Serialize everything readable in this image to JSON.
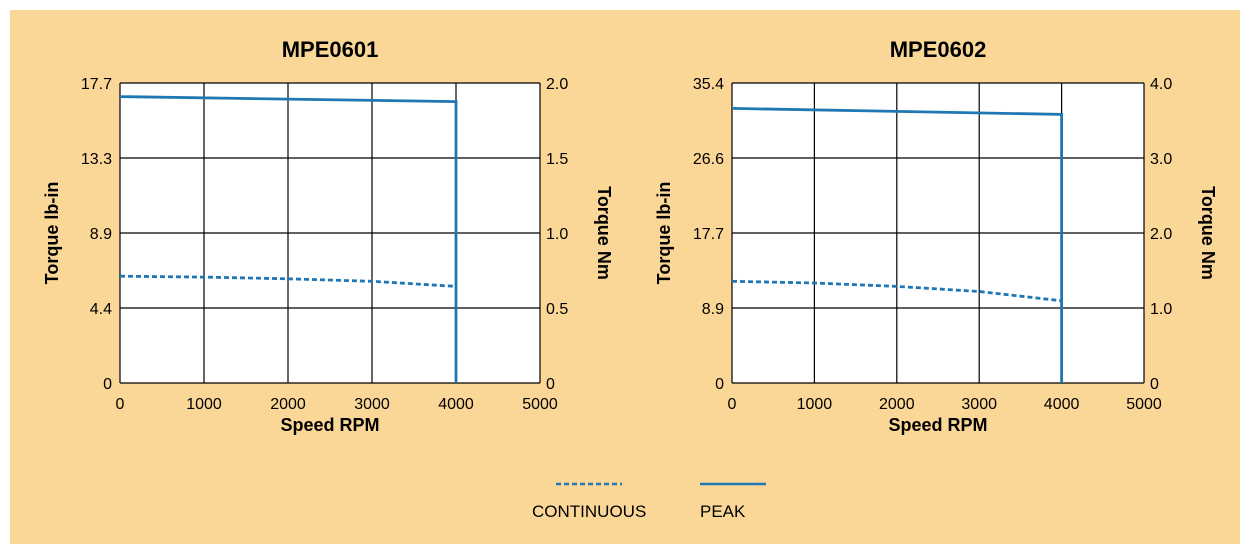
{
  "colors": {
    "background": "#fbd797",
    "plot_area": "#ffffff",
    "series": "#1f78b4",
    "grid": "#000000"
  },
  "legend": {
    "continuous_label": "CONTINUOUS",
    "peak_label": "PEAK"
  },
  "chart_data": [
    {
      "type": "line",
      "title": "MPE0601",
      "xlabel": "Speed RPM",
      "ylabel_left": "Torque lb-in",
      "ylabel_right": "Torque Nm",
      "xlim": [
        0,
        5000
      ],
      "x_ticks": [
        "0",
        "1000",
        "2000",
        "3000",
        "4000",
        "5000"
      ],
      "ylim_left": [
        0,
        17.7
      ],
      "y_ticks_left": [
        "0",
        "4.4",
        "8.9",
        "13.3",
        "17.7"
      ],
      "ylim_right": [
        0,
        2.0
      ],
      "y_ticks_right": [
        "0",
        "0.5",
        "1.0",
        "1.5",
        "2.0"
      ],
      "grid": true,
      "series": [
        {
          "name": "PEAK",
          "style": "solid",
          "x": [
            0,
            4000,
            4000
          ],
          "y": [
            16.9,
            16.6,
            0
          ]
        },
        {
          "name": "CONTINUOUS",
          "style": "dashed",
          "x": [
            0,
            1000,
            2000,
            3000,
            4000
          ],
          "y": [
            6.3,
            6.25,
            6.15,
            6.0,
            5.7
          ]
        }
      ]
    },
    {
      "type": "line",
      "title": "MPE0602",
      "xlabel": "Speed RPM",
      "ylabel_left": "Torque lb-in",
      "ylabel_right": "Torque Nm",
      "xlim": [
        0,
        5000
      ],
      "x_ticks": [
        "0",
        "1000",
        "2000",
        "3000",
        "4000",
        "5000"
      ],
      "ylim_left": [
        0,
        35.4
      ],
      "y_ticks_left": [
        "0",
        "8.9",
        "17.7",
        "26.6",
        "35.4"
      ],
      "ylim_right": [
        0,
        4.0
      ],
      "y_ticks_right": [
        "0",
        "1.0",
        "2.0",
        "3.0",
        "4.0"
      ],
      "grid": true,
      "series": [
        {
          "name": "PEAK",
          "style": "solid",
          "x": [
            0,
            4000,
            4000
          ],
          "y": [
            32.4,
            31.7,
            0
          ]
        },
        {
          "name": "CONTINUOUS",
          "style": "dashed",
          "x": [
            0,
            1000,
            2000,
            3000,
            4000
          ],
          "y": [
            12.0,
            11.8,
            11.4,
            10.8,
            9.7
          ]
        }
      ]
    }
  ]
}
